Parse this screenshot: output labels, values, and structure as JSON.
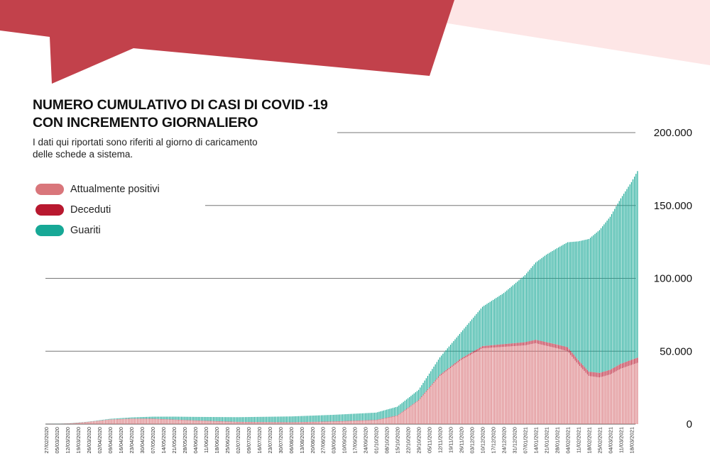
{
  "header": {
    "title_line1": "NUMERO CUMULATIVO DI CASI DI COVID -19",
    "title_line2": "CON INCREMENTO GIORNALIERO",
    "subtitle_line1": "I dati qui riportati sono riferiti al giorno di caricamento",
    "subtitle_line2": "delle schede a sistema."
  },
  "colors": {
    "banner": "#c2414b",
    "banner_light": "#fde6e6",
    "attualmente_positivi": "#d9767b",
    "deceduti": "#b8182f",
    "guariti": "#17a896",
    "gridline": "#777777"
  },
  "legend": [
    {
      "label": "Attualmente positivi",
      "color": "#d9767b"
    },
    {
      "label": "Deceduti",
      "color": "#b8182f"
    },
    {
      "label": "Guariti",
      "color": "#17a896"
    }
  ],
  "chart_data": {
    "type": "bar",
    "stacked": true,
    "title": "NUMERO CUMULATIVO DI CASI DI COVID -19 CON INCREMENTO GIORNALIERO",
    "xlabel": "",
    "ylabel": "",
    "ylim": [
      0,
      200000
    ],
    "y_ticks": [
      0,
      50000,
      100000,
      150000,
      200000
    ],
    "y_tick_labels": [
      "0",
      "50.000",
      "100.000",
      "150.000",
      "200.000"
    ],
    "legend_position": "top-left",
    "grid": true,
    "x_range": [
      "27/02/2020",
      "22/03/2021"
    ],
    "x_tick_labels": [
      "27/02/2020",
      "05/03/2020",
      "12/03/2020",
      "19/03/2020",
      "26/03/2020",
      "02/04/2020",
      "09/04/2020",
      "16/04/2020",
      "23/04/2020",
      "30/04/2020",
      "07/05/2020",
      "14/05/2020",
      "21/05/2020",
      "28/05/2020",
      "04/06/2020",
      "11/06/2020",
      "18/06/2020",
      "25/06/2020",
      "02/07/2020",
      "09/07/2020",
      "16/07/2020",
      "23/07/2020",
      "30/07/2020",
      "06/08/2020",
      "13/08/2020",
      "20/08/2020",
      "27/08/2020",
      "03/09/2020",
      "10/09/2020",
      "17/09/2020",
      "24/09/2020",
      "01/10/2020",
      "08/10/2020",
      "15/10/2020",
      "22/10/2020",
      "29/10/2020",
      "05/11/2020",
      "12/11/2020",
      "19/11/2020",
      "26/11/2020",
      "03/12/2020",
      "10/12/2020",
      "17/12/2020",
      "24/12/2020",
      "31/12/2020",
      "07/01/2021",
      "14/01/2021",
      "21/01/2021",
      "28/01/2021",
      "04/02/2021",
      "11/02/2021",
      "18/02/2021",
      "25/02/2021",
      "04/03/2021",
      "11/03/2021",
      "18/03/2021"
    ],
    "series": [
      {
        "name": "Attualmente positivi",
        "color": "#d9767b",
        "keypoints": [
          [
            "27/02/2020",
            0
          ],
          [
            "12/03/2020",
            300
          ],
          [
            "26/03/2020",
            1500
          ],
          [
            "09/04/2020",
            3000
          ],
          [
            "23/04/2020",
            3500
          ],
          [
            "07/05/2020",
            3400
          ],
          [
            "04/06/2020",
            2200
          ],
          [
            "02/07/2020",
            1200
          ],
          [
            "06/08/2020",
            900
          ],
          [
            "03/09/2020",
            1500
          ],
          [
            "01/10/2020",
            2500
          ],
          [
            "15/10/2020",
            5500
          ],
          [
            "29/10/2020",
            16000
          ],
          [
            "12/11/2020",
            33000
          ],
          [
            "26/11/2020",
            44000
          ],
          [
            "10/12/2020",
            52000
          ],
          [
            "24/12/2020",
            53000
          ],
          [
            "07/01/2021",
            54000
          ],
          [
            "14/01/2021",
            55500
          ],
          [
            "28/01/2021",
            52000
          ],
          [
            "04/02/2021",
            50000
          ],
          [
            "11/02/2021",
            41000
          ],
          [
            "18/02/2021",
            33000
          ],
          [
            "25/02/2021",
            32000
          ],
          [
            "04/03/2021",
            34000
          ],
          [
            "11/03/2021",
            38000
          ],
          [
            "22/03/2021",
            42000
          ]
        ]
      },
      {
        "name": "Deceduti",
        "color": "#b8182f",
        "keypoints": [
          [
            "27/02/2020",
            0
          ],
          [
            "26/03/2020",
            60
          ],
          [
            "23/04/2020",
            250
          ],
          [
            "04/06/2020",
            330
          ],
          [
            "01/10/2020",
            360
          ],
          [
            "29/10/2020",
            500
          ],
          [
            "26/11/2020",
            1100
          ],
          [
            "24/12/2020",
            1900
          ],
          [
            "21/01/2021",
            2500
          ],
          [
            "18/02/2021",
            3000
          ],
          [
            "22/03/2021",
            3600
          ]
        ]
      },
      {
        "name": "Guariti",
        "color": "#17a896",
        "keypoints": [
          [
            "27/02/2020",
            0
          ],
          [
            "26/03/2020",
            100
          ],
          [
            "23/04/2020",
            800
          ],
          [
            "21/05/2020",
            2000
          ],
          [
            "02/07/2020",
            3200
          ],
          [
            "06/08/2020",
            4000
          ],
          [
            "03/09/2020",
            4500
          ],
          [
            "01/10/2020",
            5000
          ],
          [
            "29/10/2020",
            7000
          ],
          [
            "12/11/2020",
            12000
          ],
          [
            "26/11/2020",
            18000
          ],
          [
            "10/12/2020",
            27000
          ],
          [
            "24/12/2020",
            35000
          ],
          [
            "07/01/2021",
            46000
          ],
          [
            "21/01/2021",
            60000
          ],
          [
            "04/02/2021",
            72000
          ],
          [
            "18/02/2021",
            91000
          ],
          [
            "04/03/2021",
            105000
          ],
          [
            "18/03/2021",
            122000
          ],
          [
            "22/03/2021",
            128000
          ]
        ]
      }
    ]
  }
}
